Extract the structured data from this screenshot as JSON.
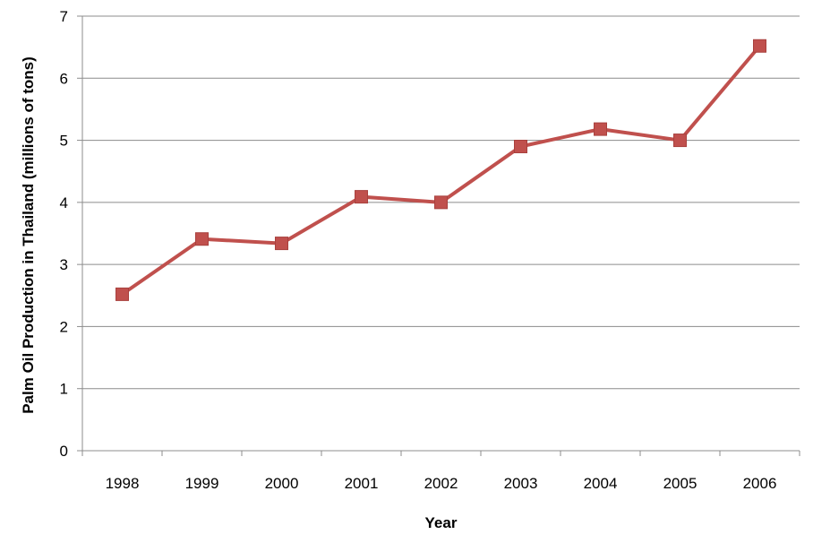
{
  "chart_data": {
    "type": "line",
    "title": "",
    "xlabel": "Year",
    "ylabel": "Palm Oil Production in Thailand (millions of tons)",
    "categories": [
      "1998",
      "1999",
      "2000",
      "2001",
      "2002",
      "2003",
      "2004",
      "2005",
      "2006"
    ],
    "series": [
      {
        "values": [
          2.52,
          3.41,
          3.34,
          4.09,
          4.0,
          4.9,
          5.18,
          5.0,
          6.52
        ],
        "color": "#c0504d",
        "marker": "square"
      }
    ],
    "ylim": [
      0,
      7
    ],
    "yticks": [
      "0",
      "1",
      "2",
      "3",
      "4",
      "5",
      "6",
      "7"
    ],
    "grid": true,
    "gridColor": "#8c8c8c",
    "legend": "none"
  }
}
